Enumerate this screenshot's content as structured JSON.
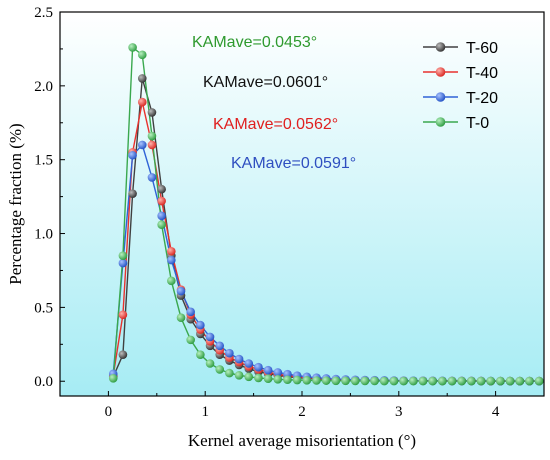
{
  "chart_data": {
    "type": "line",
    "title": "",
    "xlabel": "Kernel average misorientation (°)",
    "ylabel": "Percentage fraction (%)",
    "xlim": [
      -0.5,
      4.5
    ],
    "ylim": [
      -0.1,
      2.5
    ],
    "x_ticks": [
      "0",
      "1",
      "2",
      "3",
      "4"
    ],
    "x_tick_values": [
      0,
      1,
      2,
      3,
      4
    ],
    "y_ticks": [
      "0.0",
      "0.5",
      "1.0",
      "1.5",
      "2.0",
      "2.5"
    ],
    "y_tick_values": [
      0.0,
      0.5,
      1.0,
      1.5,
      2.0,
      2.5
    ],
    "grid": false,
    "legend_position": "top-right",
    "background": "light cyan vertical gradient",
    "x": [
      0.05,
      0.15,
      0.25,
      0.35,
      0.45,
      0.55,
      0.65,
      0.75,
      0.85,
      0.95,
      1.05,
      1.15,
      1.25,
      1.35,
      1.45,
      1.55,
      1.65,
      1.75,
      1.85,
      1.95,
      2.05,
      2.15,
      2.25,
      2.35,
      2.45,
      2.55,
      2.65,
      2.75,
      2.85,
      2.95,
      3.05,
      3.15,
      3.25,
      3.35,
      3.45,
      3.55,
      3.65,
      3.75,
      3.85,
      3.95,
      4.05,
      4.15,
      4.25,
      4.35,
      4.45
    ],
    "series": [
      {
        "name": "T-60",
        "color": "#404040",
        "values": [
          0.03,
          0.18,
          1.27,
          2.05,
          1.82,
          1.3,
          0.85,
          0.58,
          0.42,
          0.32,
          0.24,
          0.18,
          0.14,
          0.11,
          0.085,
          0.065,
          0.05,
          0.04,
          0.03,
          0.025,
          0.02,
          0.016,
          0.013,
          0.01,
          0.008,
          0.007,
          0.006,
          0.005,
          0.004,
          0.004,
          0.003,
          0.003,
          0.003,
          0.002,
          0.002,
          0.002,
          0.002,
          0.002,
          0.001,
          0.001,
          0.001,
          0.001,
          0.001,
          0.001,
          0.001
        ]
      },
      {
        "name": "T-40",
        "color": "#e8322e",
        "values": [
          0.04,
          0.45,
          1.55,
          1.89,
          1.6,
          1.22,
          0.88,
          0.62,
          0.45,
          0.35,
          0.27,
          0.21,
          0.16,
          0.13,
          0.1,
          0.08,
          0.06,
          0.048,
          0.038,
          0.03,
          0.024,
          0.019,
          0.015,
          0.012,
          0.01,
          0.008,
          0.007,
          0.006,
          0.005,
          0.004,
          0.004,
          0.003,
          0.003,
          0.003,
          0.002,
          0.002,
          0.002,
          0.002,
          0.002,
          0.001,
          0.001,
          0.001,
          0.001,
          0.001,
          0.001
        ]
      },
      {
        "name": "T-20",
        "color": "#2f63d6",
        "values": [
          0.05,
          0.8,
          1.53,
          1.6,
          1.38,
          1.12,
          0.82,
          0.61,
          0.47,
          0.38,
          0.3,
          0.24,
          0.19,
          0.15,
          0.12,
          0.095,
          0.075,
          0.06,
          0.048,
          0.038,
          0.03,
          0.024,
          0.019,
          0.015,
          0.012,
          0.01,
          0.008,
          0.007,
          0.006,
          0.005,
          0.004,
          0.004,
          0.003,
          0.003,
          0.003,
          0.002,
          0.002,
          0.002,
          0.002,
          0.002,
          0.001,
          0.001,
          0.001,
          0.001,
          0.001
        ]
      },
      {
        "name": "T-0",
        "color": "#3aa84e",
        "values": [
          0.02,
          0.85,
          2.26,
          2.21,
          1.66,
          1.06,
          0.68,
          0.43,
          0.28,
          0.18,
          0.12,
          0.08,
          0.055,
          0.04,
          0.03,
          0.022,
          0.017,
          0.013,
          0.01,
          0.008,
          0.006,
          0.005,
          0.004,
          0.003,
          0.003,
          0.002,
          0.002,
          0.002,
          0.001,
          0.001,
          0.001,
          0.001,
          0.001,
          0.001,
          0.001,
          0.001,
          0.001,
          0.001,
          0.001,
          0.001,
          0.001,
          0.001,
          0.001,
          0.001,
          0.001
        ]
      }
    ],
    "annotations": [
      {
        "text": "KAMave=0.0453°",
        "color": "#2e9a2e"
      },
      {
        "text": "KAMave=0.0601°",
        "color": "#111111"
      },
      {
        "text": "KAMave=0.0562°",
        "color": "#e02020"
      },
      {
        "text": "KAMave=0.0591°",
        "color": "#2f4fc0"
      }
    ]
  }
}
